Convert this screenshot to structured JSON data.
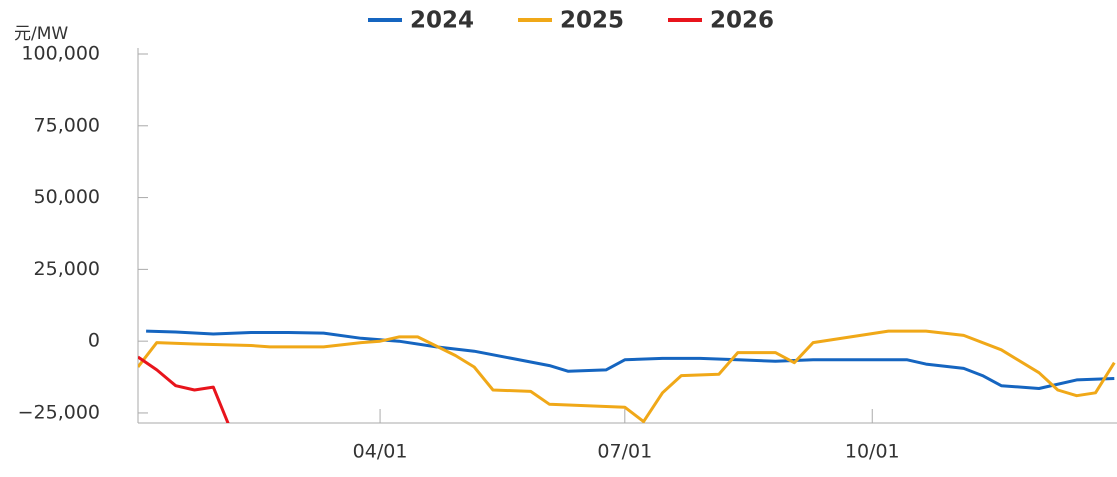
{
  "chart_data": {
    "type": "line",
    "y_label": "元/MW",
    "xlim": [
      "01/01",
      "12/31"
    ],
    "xticks": [
      "04/01",
      "07/01",
      "10/01"
    ],
    "ylim": [
      -28500,
      100000
    ],
    "yticks": [
      {
        "value": -25000,
        "label": "−25,000"
      },
      0,
      {
        "value": 25000,
        "label": "25,000"
      },
      {
        "value": 50000,
        "label": "50,000"
      },
      {
        "value": 75000,
        "label": "75,000"
      },
      {
        "value": 100000,
        "label": "100,000"
      }
    ],
    "grid": false,
    "legend": "top",
    "series": [
      {
        "name": "2024",
        "color": "#1565c0",
        "x": [
          "01/04",
          "01/15",
          "01/29",
          "02/12",
          "02/26",
          "03/11",
          "03/25",
          "04/08",
          "04/22",
          "05/06",
          "05/20",
          "06/03",
          "06/10",
          "06/24",
          "07/01",
          "07/15",
          "07/29",
          "08/12",
          "08/26",
          "09/09",
          "09/23",
          "10/07",
          "10/14",
          "10/21",
          "11/04",
          "11/11",
          "11/18",
          "12/02",
          "12/16",
          "12/30"
        ],
        "values": [
          3500,
          3200,
          2500,
          3000,
          3000,
          2800,
          1000,
          0,
          -2000,
          -3500,
          -6000,
          -8500,
          -10500,
          -10000,
          -6500,
          -6000,
          -6000,
          -6500,
          -7000,
          -6500,
          -6500,
          -6500,
          -6500,
          -8000,
          -9500,
          -12000,
          -15500,
          -16500,
          -13500,
          -13000
        ]
      },
      {
        "name": "2025",
        "color": "#f0a818",
        "x": [
          "01/01",
          "01/08",
          "01/22",
          "02/12",
          "02/19",
          "03/11",
          "03/25",
          "04/01",
          "04/08",
          "04/15",
          "04/29",
          "05/06",
          "05/13",
          "05/27",
          "06/03",
          "06/17",
          "07/01",
          "07/08",
          "07/15",
          "07/22",
          "08/05",
          "08/12",
          "08/26",
          "09/02",
          "09/09",
          "09/23",
          "10/07",
          "10/21",
          "11/04",
          "11/18",
          "12/02",
          "12/09",
          "12/16",
          "12/23",
          "12/30"
        ],
        "values": [
          -9000,
          -500,
          -1000,
          -1500,
          -2000,
          -2000,
          -500,
          0,
          1500,
          1500,
          -5000,
          -9000,
          -17000,
          -17500,
          -22000,
          -22500,
          -23000,
          -28000,
          -18000,
          -12000,
          -11500,
          -4000,
          -4000,
          -7500,
          -500,
          1500,
          3500,
          3500,
          2000,
          -3000,
          -11000,
          -17000,
          -19000,
          -18000,
          -7500
        ]
      },
      {
        "name": "2026",
        "color": "#e8141c",
        "x": [
          "01/01",
          "01/08",
          "01/15",
          "01/22",
          "01/29",
          "02/05"
        ],
        "values": [
          -5500,
          -10000,
          -15500,
          -17000,
          -16000,
          -32000
        ]
      }
    ]
  }
}
